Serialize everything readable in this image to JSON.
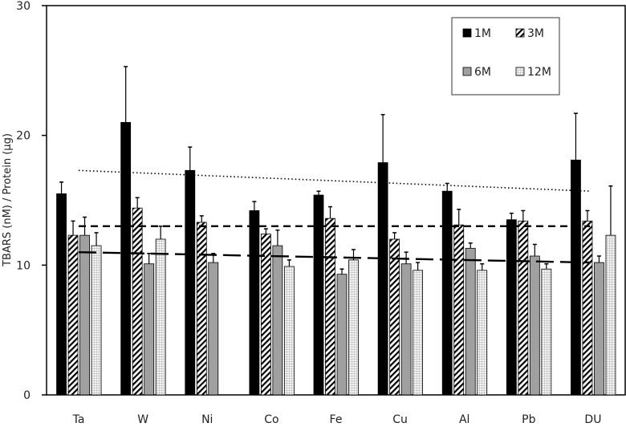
{
  "chart_data": {
    "type": "bar",
    "title": "",
    "xlabel": "",
    "ylabel": "TBARS (nM) / Protein (µg)",
    "ylim": [
      0,
      30
    ],
    "yticks": [
      0,
      10,
      20,
      30
    ],
    "grid": false,
    "legend_position": "top-right",
    "categories": [
      "Ta",
      "W",
      "Ni",
      "Co",
      "Fe",
      "Cu",
      "Al",
      "Pb",
      "DU"
    ],
    "series": [
      {
        "name": "1M",
        "pattern": "solid-black",
        "values": [
          15.5,
          21.0,
          17.3,
          14.2,
          15.4,
          17.9,
          15.7,
          13.5,
          18.1
        ],
        "errors": [
          0.9,
          4.3,
          1.8,
          0.7,
          0.3,
          3.7,
          0.6,
          0.5,
          3.6
        ]
      },
      {
        "name": "3M",
        "pattern": "diagonal-hatch",
        "values": [
          12.3,
          14.4,
          13.3,
          12.4,
          13.6,
          12.0,
          13.1,
          13.4,
          13.4
        ],
        "errors": [
          1.1,
          0.8,
          0.5,
          0.4,
          0.9,
          0.5,
          1.2,
          0.8,
          0.8
        ]
      },
      {
        "name": "6M",
        "pattern": "solid-gray",
        "values": [
          12.3,
          10.1,
          10.2,
          11.5,
          9.3,
          10.1,
          11.3,
          10.7,
          10.2
        ],
        "errors": [
          1.4,
          0.8,
          0.7,
          1.2,
          0.4,
          0.9,
          0.4,
          0.9,
          0.5
        ]
      },
      {
        "name": "12M",
        "pattern": "grid",
        "values": [
          11.5,
          12.0,
          null,
          9.9,
          10.4,
          9.6,
          9.6,
          9.7,
          12.3
        ],
        "errors": [
          1.0,
          1.0,
          null,
          0.5,
          0.8,
          0.6,
          0.5,
          0.4,
          3.8
        ]
      }
    ],
    "trendlines": [
      {
        "series": "1M",
        "style": "dotted",
        "start": 17.3,
        "end": 15.7
      },
      {
        "series": "3M",
        "style": "dashed",
        "start": 13.0,
        "end": 13.0
      },
      {
        "series": "6M",
        "style": "long-dashed",
        "start": 11.0,
        "end": 10.2
      }
    ]
  },
  "colors": {
    "black": "#000000",
    "gray": "#a0a0a0",
    "grid_line": "#9a9a9a"
  }
}
